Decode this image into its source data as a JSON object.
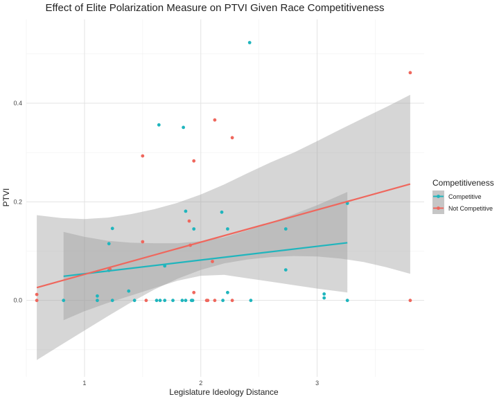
{
  "chart_data": {
    "type": "scatter",
    "title": "Effect of Elite Polarization Measure on PTVI Given Race Competitiveness",
    "xlabel": "Legislature Ideology Distance",
    "ylabel": "PTVI",
    "xlim": [
      0.5,
      3.92
    ],
    "ylim": [
      -0.155,
      0.57
    ],
    "x_ticks": [
      1,
      2,
      3
    ],
    "x_tick_labels": [
      "1",
      "2",
      "3"
    ],
    "y_ticks": [
      0.0,
      0.2,
      0.4
    ],
    "y_tick_labels": [
      "0.0",
      "0.2",
      "0.4"
    ],
    "x_minor_grid": [
      0.5,
      1.5,
      2.5,
      3.5
    ],
    "y_minor_grid": [
      -0.1,
      0.1,
      0.3,
      0.5
    ],
    "grid": true,
    "legend": {
      "title": "Competitiveness",
      "position": "right"
    },
    "series": [
      {
        "name": "Competitive",
        "color": "#1fb5bd",
        "points": [
          [
            0.82,
            0.0
          ],
          [
            1.11,
            0.009
          ],
          [
            1.11,
            0.0
          ],
          [
            1.21,
            0.115
          ],
          [
            1.21,
            0.061
          ],
          [
            1.24,
            0.146
          ],
          [
            1.24,
            0.0
          ],
          [
            1.38,
            0.019
          ],
          [
            1.43,
            0.0
          ],
          [
            1.62,
            0.0
          ],
          [
            1.64,
            0.356
          ],
          [
            1.65,
            0.0
          ],
          [
            1.69,
            0.07
          ],
          [
            1.69,
            0.0
          ],
          [
            1.76,
            0.0
          ],
          [
            1.84,
            0.0
          ],
          [
            1.85,
            0.351
          ],
          [
            1.87,
            0.181
          ],
          [
            1.87,
            0.0
          ],
          [
            1.92,
            0.0
          ],
          [
            1.93,
            0.0
          ],
          [
            1.94,
            0.145
          ],
          [
            2.18,
            0.179
          ],
          [
            2.19,
            0.0
          ],
          [
            2.23,
            0.145
          ],
          [
            2.23,
            0.016
          ],
          [
            2.42,
            0.523
          ],
          [
            2.43,
            0.0
          ],
          [
            2.73,
            0.145
          ],
          [
            2.73,
            0.062
          ],
          [
            3.06,
            0.013
          ],
          [
            3.06,
            0.005
          ],
          [
            3.26,
            0.197
          ],
          [
            3.26,
            0.0
          ]
        ],
        "fit": {
          "x": [
            0.82,
            3.26
          ],
          "y": [
            0.049,
            0.117
          ]
        },
        "ci": {
          "x": [
            0.82,
            1.0,
            1.2,
            1.4,
            1.6,
            1.8,
            2.0,
            2.2,
            2.4,
            2.6,
            2.8,
            3.0,
            3.26
          ],
          "upper": [
            0.139,
            0.129,
            0.121,
            0.117,
            0.116,
            0.116,
            0.12,
            0.128,
            0.142,
            0.158,
            0.175,
            0.193,
            0.22
          ],
          "lower": [
            -0.04,
            -0.022,
            -0.005,
            0.01,
            0.025,
            0.04,
            0.05,
            0.052,
            0.045,
            0.038,
            0.031,
            0.024,
            0.016
          ]
        }
      },
      {
        "name": "Not Competitive",
        "color": "#ef675d",
        "points": [
          [
            0.59,
            0.012
          ],
          [
            0.59,
            0.0
          ],
          [
            1.22,
            0.063
          ],
          [
            1.5,
            0.293
          ],
          [
            1.5,
            0.119
          ],
          [
            1.53,
            0.0
          ],
          [
            1.9,
            0.161
          ],
          [
            1.91,
            0.112
          ],
          [
            1.94,
            0.283
          ],
          [
            1.94,
            0.016
          ],
          [
            2.05,
            0.0
          ],
          [
            2.06,
            0.0
          ],
          [
            2.1,
            0.079
          ],
          [
            2.12,
            0.366
          ],
          [
            2.12,
            0.0
          ],
          [
            2.27,
            0.33
          ],
          [
            2.27,
            0.0
          ],
          [
            3.8,
            0.462
          ],
          [
            3.8,
            0.0
          ]
        ],
        "fit": {
          "x": [
            0.59,
            3.8
          ],
          "y": [
            0.026,
            0.236
          ]
        },
        "ci": {
          "x": [
            0.59,
            0.8,
            1.0,
            1.2,
            1.4,
            1.6,
            1.8,
            2.0,
            2.2,
            2.4,
            2.6,
            2.8,
            3.0,
            3.2,
            3.4,
            3.6,
            3.8
          ],
          "upper": [
            0.173,
            0.167,
            0.165,
            0.168,
            0.175,
            0.185,
            0.198,
            0.215,
            0.235,
            0.258,
            0.28,
            0.3,
            0.323,
            0.347,
            0.37,
            0.393,
            0.417
          ],
          "lower": [
            -0.121,
            -0.09,
            -0.061,
            -0.032,
            -0.004,
            0.022,
            0.044,
            0.062,
            0.075,
            0.083,
            0.088,
            0.09,
            0.089,
            0.085,
            0.078,
            0.067,
            0.054
          ]
        }
      }
    ]
  }
}
